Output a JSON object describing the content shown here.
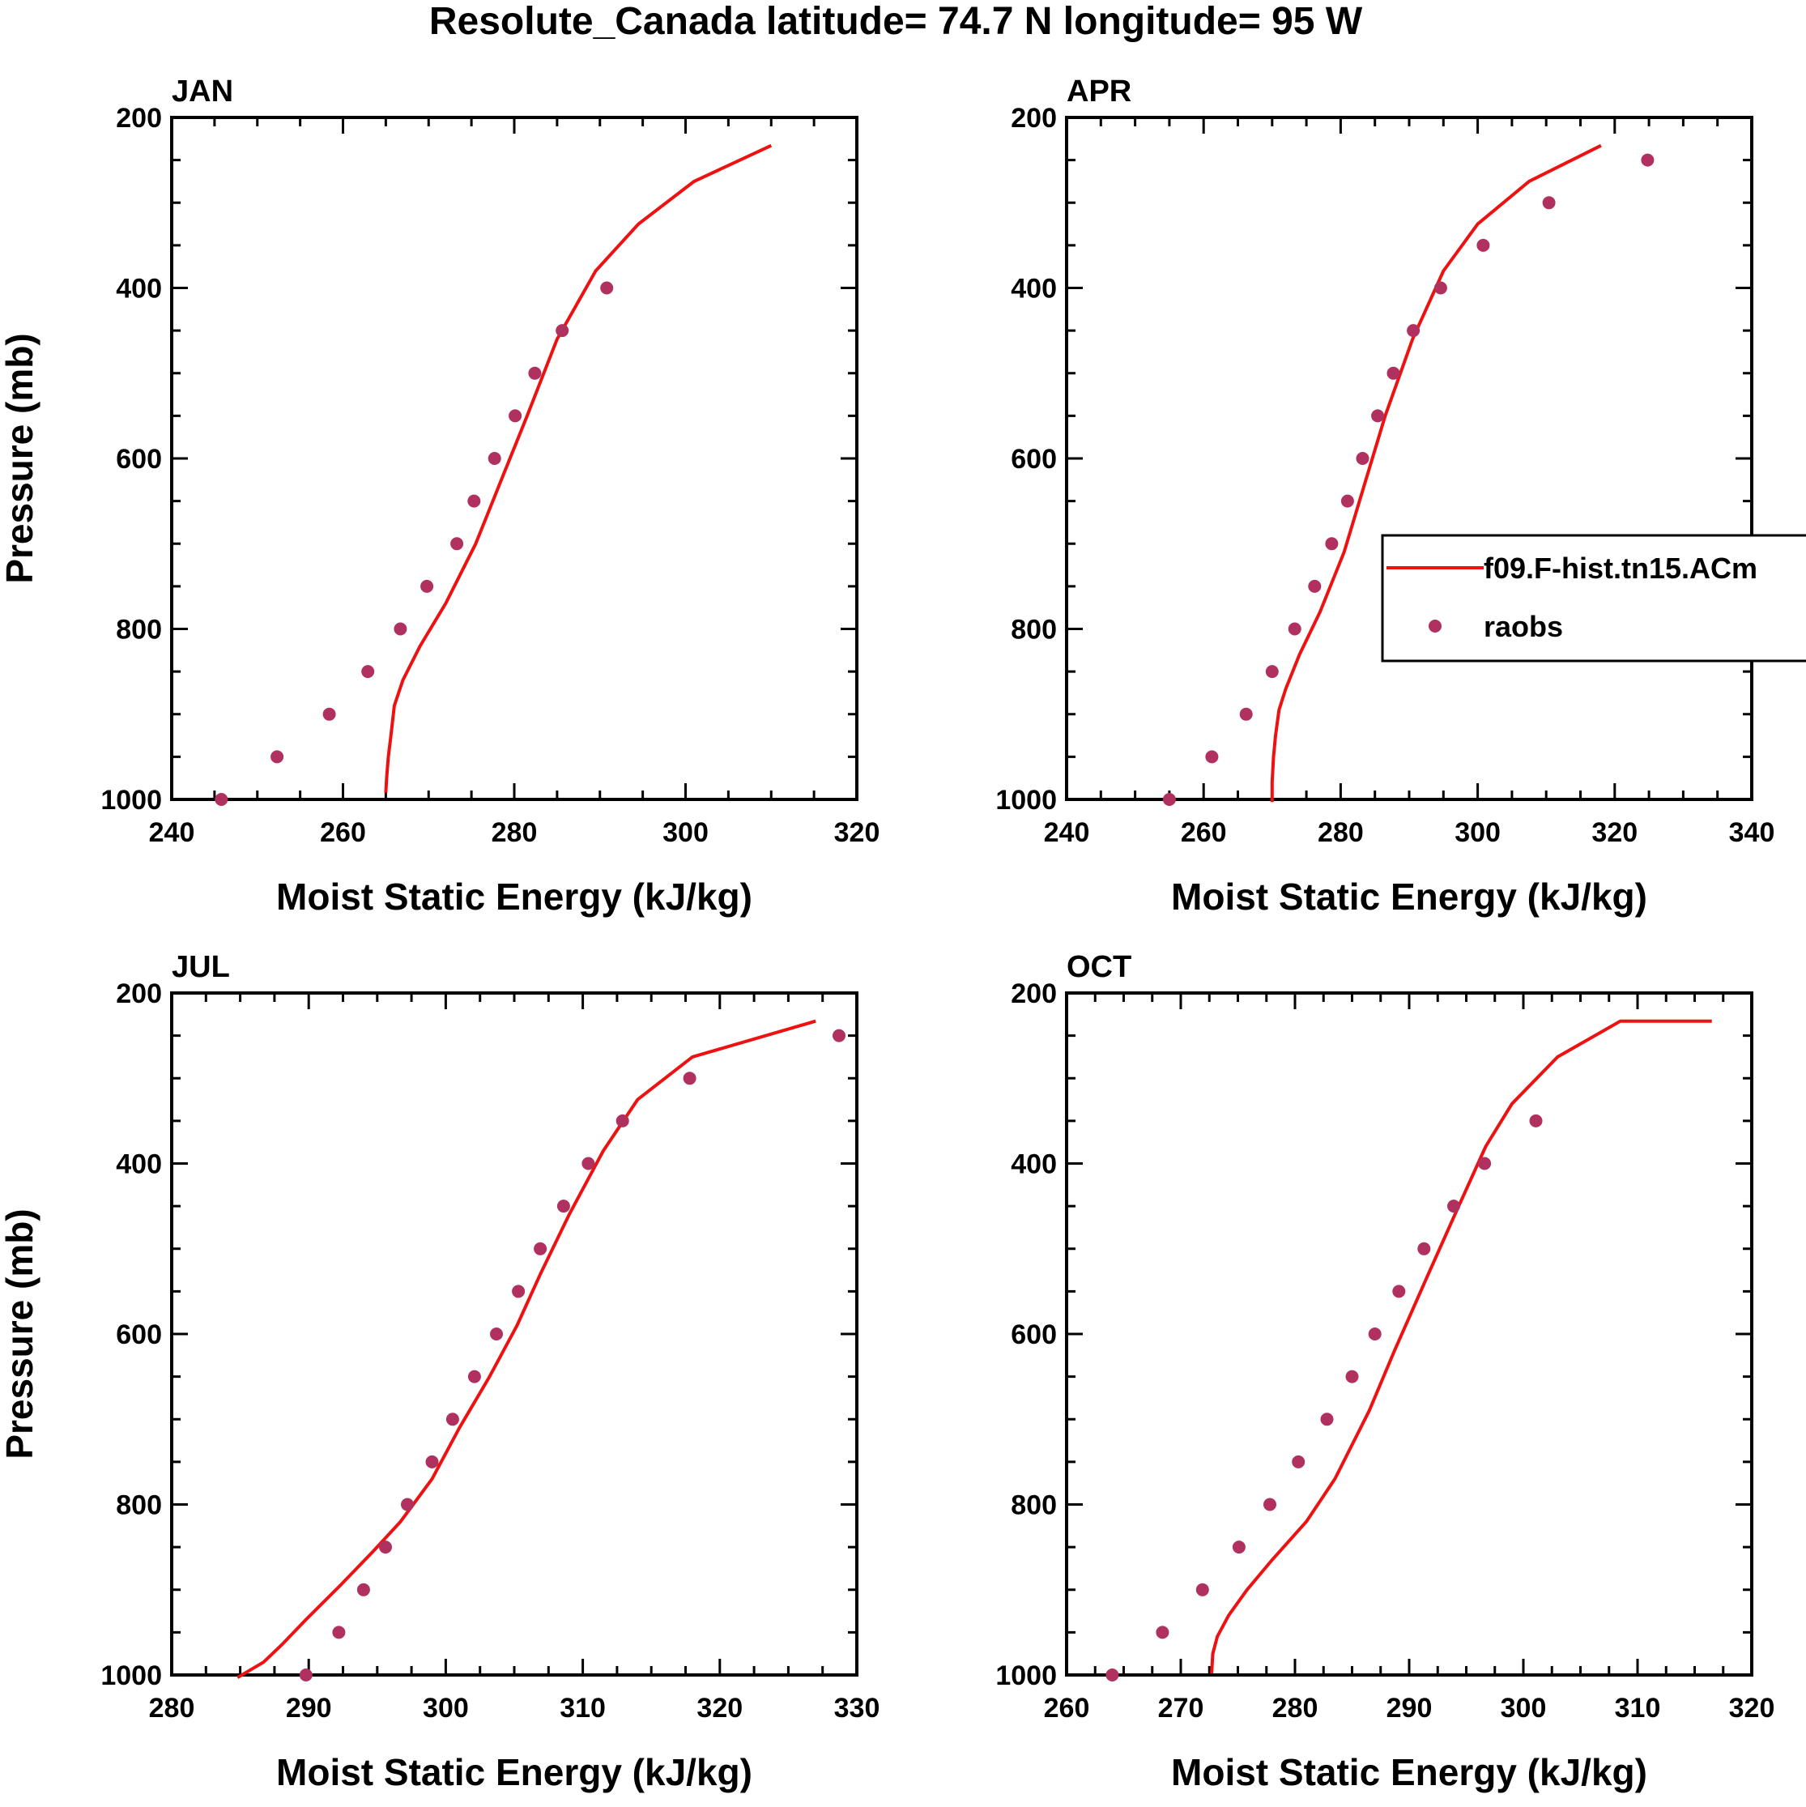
{
  "title": "Resolute_Canada  latitude= 74.7 N longitude= 95 W",
  "legend": {
    "entries": [
      {
        "label": "f09.F-hist.tn15.ACm",
        "kind": "line",
        "color": "#ee1111"
      },
      {
        "label": "raobs",
        "kind": "marker",
        "color": "#b03060"
      }
    ]
  },
  "chart_data": [
    {
      "type": "line",
      "panel_label": "JAN",
      "xlabel": "Moist Static Energy (kJ/kg)",
      "ylabel": "Pressure (mb)",
      "xlim": [
        240,
        320
      ],
      "ylim": [
        1000,
        200
      ],
      "xticks": [
        240,
        260,
        280,
        300,
        320
      ],
      "xminor_step": 5,
      "yticks": [
        200,
        400,
        600,
        800,
        1000
      ],
      "yminor_step": 50,
      "show_ylabel": true,
      "series": [
        {
          "name": "f09.F-hist.tn15.ACm",
          "kind": "line",
          "x": [
            265.0,
            265.1,
            265.3,
            265.6,
            266.0,
            267.0,
            269.0,
            272.0,
            275.5,
            278.5,
            281.5,
            285.0,
            289.5,
            294.5,
            301.0,
            310.0
          ],
          "y": [
            992,
            975,
            950,
            925,
            890,
            860,
            820,
            770,
            700,
            625,
            550,
            460,
            380,
            325,
            275,
            233
          ]
        },
        {
          "name": "raobs",
          "kind": "marker",
          "x": [
            245.8,
            252.3,
            258.4,
            262.9,
            266.7,
            269.8,
            273.3,
            275.3,
            277.7,
            280.1,
            282.4,
            285.6,
            290.8
          ],
          "y": [
            1000,
            950,
            900,
            850,
            800,
            750,
            700,
            650,
            600,
            550,
            500,
            450,
            400
          ]
        }
      ]
    },
    {
      "type": "line",
      "panel_label": "APR",
      "xlabel": "Moist Static Energy (kJ/kg)",
      "ylabel": "",
      "xlim": [
        240,
        340
      ],
      "ylim": [
        1000,
        200
      ],
      "xticks": [
        240,
        260,
        280,
        300,
        320,
        340
      ],
      "xminor_step": 5,
      "yticks": [
        200,
        400,
        600,
        800,
        1000
      ],
      "yminor_step": 50,
      "show_ylabel": false,
      "series": [
        {
          "name": "f09.F-hist.tn15.ACm",
          "kind": "line",
          "x": [
            270.0,
            270.0,
            270.2,
            270.5,
            271.0,
            272.0,
            274.0,
            277.0,
            280.5,
            283.5,
            286.5,
            290.5,
            295.0,
            300.0,
            307.5,
            318.0
          ],
          "y": [
            1003,
            980,
            950,
            925,
            895,
            870,
            830,
            780,
            710,
            630,
            550,
            460,
            380,
            325,
            275,
            233
          ]
        },
        {
          "name": "raobs",
          "kind": "marker",
          "x": [
            255.0,
            261.2,
            266.2,
            270.0,
            273.3,
            276.2,
            278.7,
            281.0,
            283.2,
            285.4,
            287.7,
            290.6,
            294.6,
            300.8,
            310.4,
            324.8
          ],
          "y": [
            1000,
            950,
            900,
            850,
            800,
            750,
            700,
            650,
            600,
            550,
            500,
            450,
            400,
            350,
            300,
            250
          ]
        }
      ]
    },
    {
      "type": "line",
      "panel_label": "JUL",
      "xlabel": "Moist Static Energy (kJ/kg)",
      "ylabel": "Pressure (mb)",
      "xlim": [
        280,
        330
      ],
      "ylim": [
        1000,
        200
      ],
      "xticks": [
        280,
        290,
        300,
        310,
        320,
        330
      ],
      "xminor_step": 2.5,
      "yticks": [
        200,
        400,
        600,
        800,
        1000
      ],
      "yminor_step": 50,
      "show_ylabel": true,
      "series": [
        {
          "name": "f09.F-hist.tn15.ACm",
          "kind": "line",
          "x": [
            284.8,
            286.7,
            288.0,
            289.8,
            292.3,
            294.7,
            296.7,
            299.0,
            301.0,
            303.2,
            305.2,
            306.9,
            309.0,
            311.5,
            314.0,
            318.0,
            327.0
          ],
          "y": [
            1003,
            985,
            965,
            935,
            895,
            855,
            820,
            770,
            710,
            650,
            590,
            530,
            460,
            385,
            325,
            275,
            233
          ]
        },
        {
          "name": "raobs",
          "kind": "marker",
          "x": [
            289.8,
            292.2,
            294.0,
            295.6,
            297.2,
            299.0,
            300.5,
            302.1,
            303.7,
            305.3,
            306.9,
            308.6,
            310.4,
            312.9,
            317.8,
            328.7
          ],
          "y": [
            1000,
            950,
            900,
            850,
            800,
            750,
            700,
            650,
            600,
            550,
            500,
            450,
            400,
            350,
            300,
            250
          ]
        }
      ]
    },
    {
      "type": "line",
      "panel_label": "OCT",
      "xlabel": "Moist Static Energy (kJ/kg)",
      "ylabel": "",
      "xlim": [
        260,
        320
      ],
      "ylim": [
        1000,
        200
      ],
      "xticks": [
        260,
        270,
        280,
        290,
        300,
        310,
        320
      ],
      "xminor_step": 2.5,
      "yticks": [
        200,
        400,
        600,
        800,
        1000
      ],
      "yminor_step": 50,
      "show_ylabel": false,
      "series": [
        {
          "name": "f09.F-hist.tn15.ACm",
          "kind": "line",
          "x": [
            272.7,
            272.8,
            273.2,
            274.2,
            275.8,
            278.0,
            281.0,
            283.5,
            286.5,
            288.7,
            291.5,
            294.0,
            296.7,
            299.0,
            303.0,
            308.5,
            316.5
          ],
          "y": [
            998,
            975,
            955,
            930,
            900,
            865,
            820,
            770,
            690,
            620,
            535,
            460,
            380,
            330,
            275,
            233,
            233
          ]
        },
        {
          "name": "raobs",
          "kind": "marker",
          "x": [
            264.0,
            268.4,
            271.9,
            275.1,
            277.8,
            280.3,
            282.8,
            285.0,
            287.0,
            289.1,
            291.3,
            293.9,
            296.6,
            301.1
          ],
          "y": [
            1000,
            950,
            900,
            850,
            800,
            750,
            700,
            650,
            600,
            550,
            500,
            450,
            400,
            350
          ]
        }
      ]
    }
  ]
}
